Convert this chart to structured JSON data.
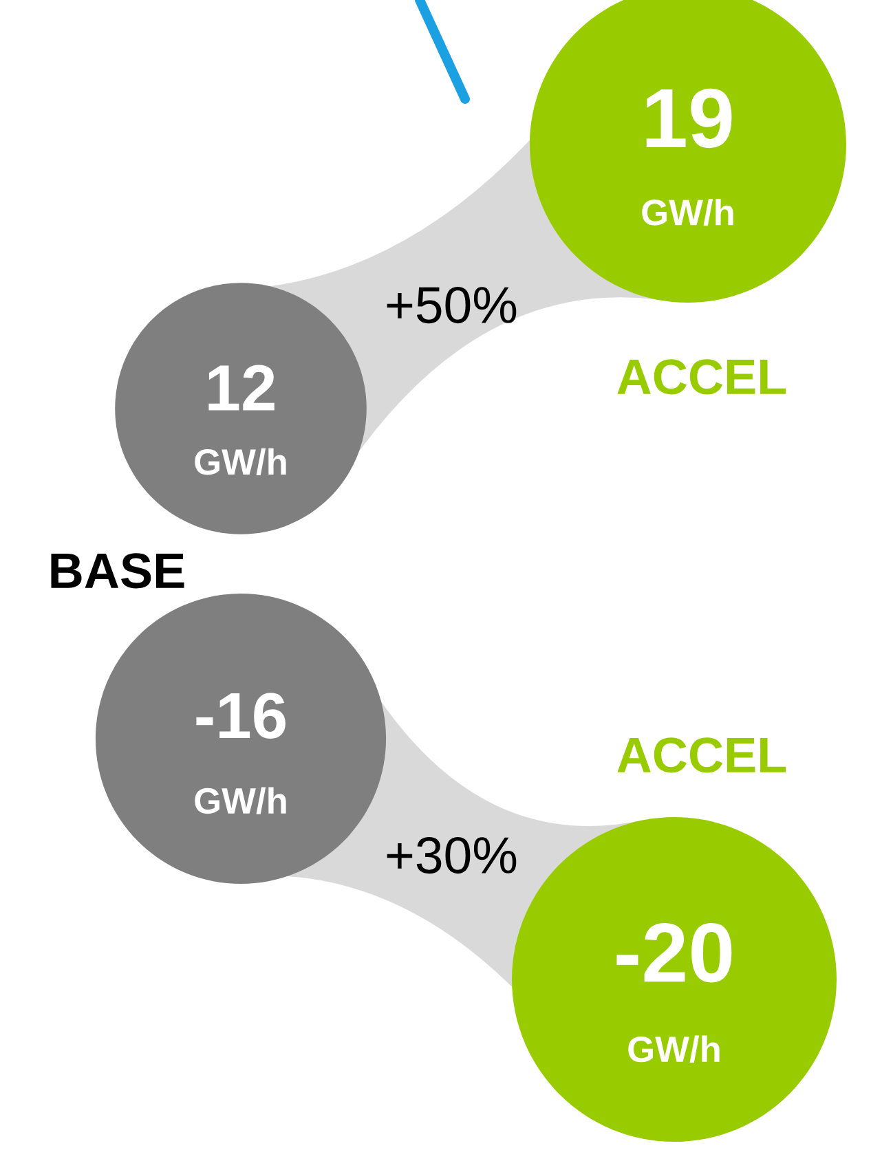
{
  "chart_data": {
    "type": "other",
    "categories": [
      "BASE",
      "ACCEL"
    ],
    "series": [
      {
        "values": [
          12,
          19
        ],
        "colors": [
          "#7f7f7f",
          "#99cc00"
        ],
        "value_labels": [
          "12\nGW/h",
          "19\nGW/h"
        ]
      },
      {
        "values": [
          -16,
          -20
        ],
        "colors": [
          "#7f7f7f",
          "#99cc00"
        ],
        "value_labels": [
          "-16\nGW/h",
          "-20\nGW/h"
        ]
      }
    ],
    "annotations": [
      "+50%",
      "+30%"
    ]
  }
}
